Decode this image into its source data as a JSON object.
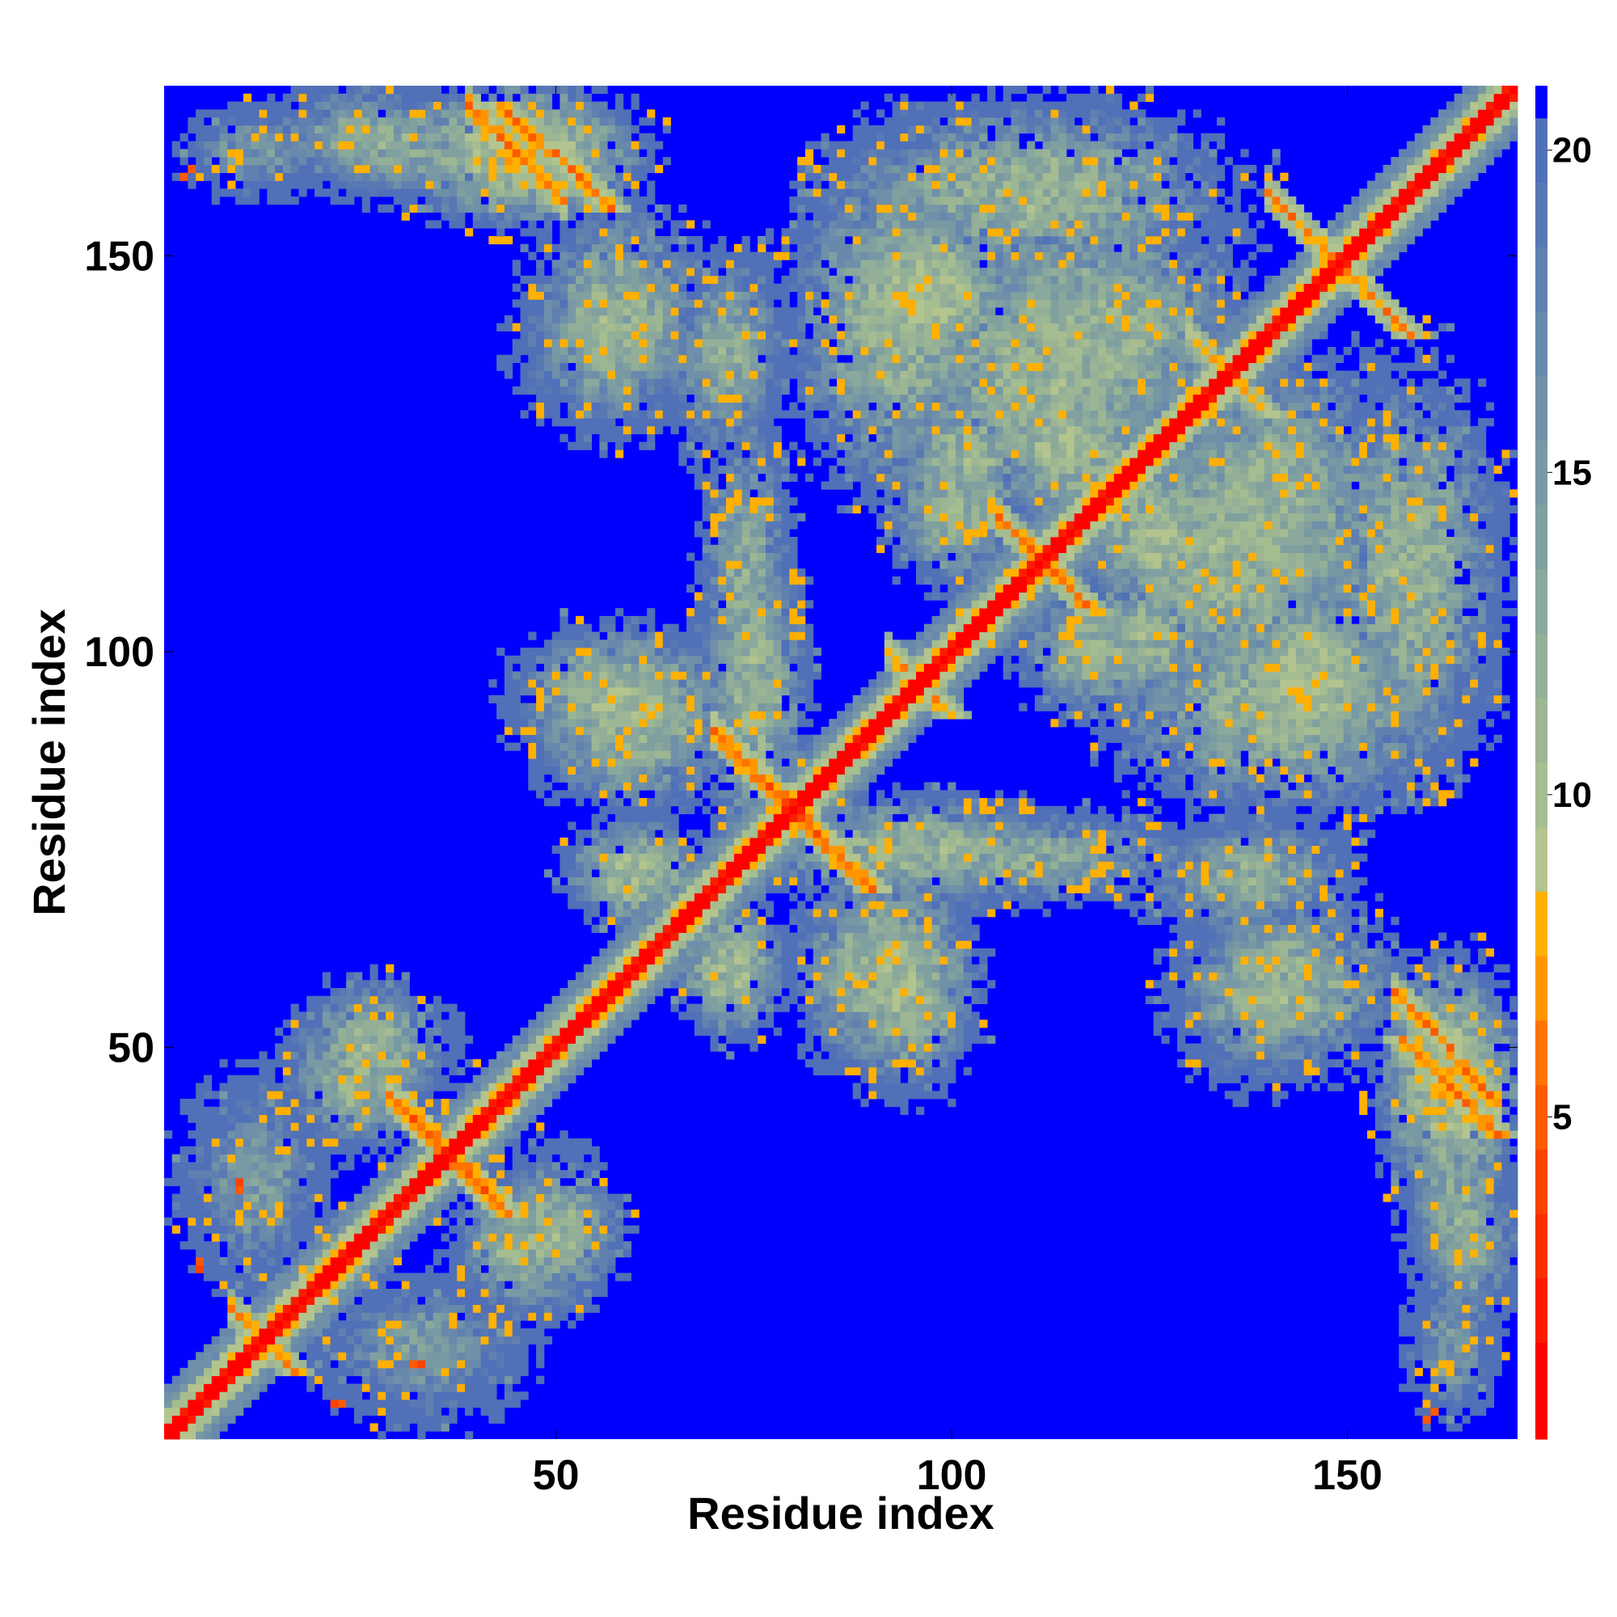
{
  "chart_data": {
    "type": "heatmap",
    "title": "",
    "xlabel": "Residue index",
    "ylabel": "Residue index",
    "n_residues": 171,
    "xlim": [
      1,
      171
    ],
    "ylim": [
      1,
      171
    ],
    "x_ticks": [
      50,
      100,
      150
    ],
    "y_ticks": [
      50,
      100,
      150
    ],
    "x_tick_labels": [
      "50",
      "100",
      "150"
    ],
    "y_tick_labels": [
      "50",
      "100",
      "150"
    ],
    "colorbar": {
      "range": [
        0,
        21
      ],
      "ticks": [
        5,
        10,
        15,
        20
      ],
      "tick_labels": [
        "5",
        "10",
        "15",
        "20"
      ],
      "bins": [
        {
          "max": 1.5,
          "color": "#ff0000"
        },
        {
          "max": 2.5,
          "color": "#fb1c00"
        },
        {
          "max": 3.5,
          "color": "#f83000"
        },
        {
          "max": 4.5,
          "color": "#fa4200"
        },
        {
          "max": 5.5,
          "color": "#fd5a00"
        },
        {
          "max": 6.5,
          "color": "#ff7400"
        },
        {
          "max": 7.5,
          "color": "#ff9600"
        },
        {
          "max": 8.5,
          "color": "#ffb000"
        },
        {
          "max": 9.5,
          "color": "#b3c48e"
        },
        {
          "max": 10.5,
          "color": "#a5bd90"
        },
        {
          "max": 11.5,
          "color": "#9cb694"
        },
        {
          "max": 12.5,
          "color": "#93af98"
        },
        {
          "max": 13.5,
          "color": "#8aa89c"
        },
        {
          "max": 14.5,
          "color": "#80a0a0"
        },
        {
          "max": 15.5,
          "color": "#7898a4"
        },
        {
          "max": 16.5,
          "color": "#6f90a8"
        },
        {
          "max": 17.5,
          "color": "#6888ac"
        },
        {
          "max": 18.5,
          "color": "#6080b0"
        },
        {
          "max": 19.5,
          "color": "#5878b4"
        },
        {
          "max": 20.5,
          "color": "#5070b8"
        },
        {
          "max": 21.0,
          "color": "#0000ff"
        }
      ]
    },
    "background_color": "#0000ff",
    "contact_features": [
      {
        "kind": "diagonal",
        "start": 1,
        "end": 171,
        "width": 1.4,
        "distance": 0.5
      },
      {
        "kind": "diagonal",
        "start": 1,
        "end": 171,
        "width": 3.0,
        "distance": 6
      },
      {
        "kind": "diagonal",
        "start": 1,
        "end": 171,
        "width": 6.0,
        "distance": 11
      },
      {
        "kind": "diagonal",
        "start": 1,
        "end": 171,
        "width": 9.0,
        "distance": 15
      },
      {
        "kind": "antiparallel",
        "from": [
          70,
          90
        ],
        "to": [
          80,
          80
        ],
        "width": 1.5,
        "distance": 4
      },
      {
        "kind": "antiparallel",
        "from": [
          29,
          44
        ],
        "to": [
          37,
          37
        ],
        "width": 1.8,
        "distance": 4
      },
      {
        "kind": "antiparallel",
        "from": [
          9,
          17
        ],
        "to": [
          13,
          13
        ],
        "width": 1.5,
        "distance": 5
      },
      {
        "kind": "antiparallel",
        "from": [
          105,
          118
        ],
        "to": [
          110,
          110
        ],
        "width": 1.5,
        "distance": 5
      },
      {
        "kind": "antiparallel",
        "from": [
          140,
          158
        ],
        "to": [
          150,
          150
        ],
        "width": 1.5,
        "distance": 5
      },
      {
        "kind": "antiparallel",
        "from": [
          130,
          140
        ],
        "to": [
          133,
          133
        ],
        "width": 1.5,
        "distance": 6
      },
      {
        "kind": "antiparallel",
        "from": [
          92,
          100
        ],
        "to": [
          96,
          96
        ],
        "width": 1.5,
        "distance": 6
      },
      {
        "kind": "segment",
        "from": [
          39,
          169
        ],
        "to": [
          51,
          157
        ],
        "width": 1.6,
        "distance": 4.5
      },
      {
        "kind": "segment",
        "from": [
          156,
          57
        ],
        "to": [
          169,
          43
        ],
        "width": 1.6,
        "distance": 4.5
      },
      {
        "kind": "blob",
        "center": [
          45,
          163
        ],
        "radius": [
          14,
          8
        ],
        "distance": 10
      },
      {
        "kind": "blob",
        "center": [
          25,
          165
        ],
        "radius": [
          12,
          6
        ],
        "distance": 14
      },
      {
        "kind": "blob",
        "center": [
          58,
          143
        ],
        "radius": [
          10,
          12
        ],
        "distance": 12
      },
      {
        "kind": "blob",
        "center": [
          71,
          137
        ],
        "radius": [
          6,
          11
        ],
        "distance": 13
      },
      {
        "kind": "blob",
        "center": [
          58,
          94
        ],
        "radius": [
          12,
          8
        ],
        "distance": 11
      },
      {
        "kind": "blob",
        "center": [
          74,
          110
        ],
        "radius": [
          5,
          18
        ],
        "distance": 13
      },
      {
        "kind": "blob",
        "center": [
          93,
          142
        ],
        "radius": [
          12,
          20
        ],
        "distance": 12
      },
      {
        "kind": "blob",
        "center": [
          118,
          140
        ],
        "radius": [
          18,
          15
        ],
        "distance": 12
      },
      {
        "kind": "blob",
        "center": [
          135,
          112
        ],
        "radius": [
          18,
          18
        ],
        "distance": 12
      },
      {
        "kind": "blob",
        "center": [
          145,
          97
        ],
        "radius": [
          10,
          10
        ],
        "distance": 10
      },
      {
        "kind": "blob",
        "center": [
          158,
          110
        ],
        "radius": [
          10,
          22
        ],
        "distance": 12
      },
      {
        "kind": "blob",
        "center": [
          95,
          75
        ],
        "radius": [
          18,
          6
        ],
        "distance": 12
      },
      {
        "kind": "blob",
        "center": [
          90,
          60
        ],
        "radius": [
          9,
          11
        ],
        "distance": 12
      },
      {
        "kind": "blob",
        "center": [
          138,
          73
        ],
        "radius": [
          10,
          5
        ],
        "distance": 13
      },
      {
        "kind": "blob",
        "center": [
          139,
          57
        ],
        "radius": [
          10,
          10
        ],
        "distance": 13
      },
      {
        "kind": "blob",
        "center": [
          164,
          30
        ],
        "radius": [
          6,
          10
        ],
        "distance": 13
      },
      {
        "kind": "blob",
        "center": [
          163,
          12
        ],
        "radius": [
          5,
          8
        ],
        "distance": 15
      },
      {
        "kind": "blob",
        "center": [
          60,
          72
        ],
        "radius": [
          8,
          6
        ],
        "distance": 11
      },
      {
        "kind": "blob",
        "center": [
          46,
          25
        ],
        "radius": [
          8,
          8
        ],
        "distance": 12
      },
      {
        "kind": "blob",
        "center": [
          27,
          50
        ],
        "radius": [
          9,
          7
        ],
        "distance": 12
      },
      {
        "kind": "blob",
        "center": [
          12,
          33
        ],
        "radius": [
          8,
          12
        ],
        "distance": 15
      },
      {
        "kind": "blob",
        "center": [
          34,
          13
        ],
        "radius": [
          9,
          6
        ],
        "distance": 15
      },
      {
        "kind": "blob",
        "center": [
          115,
          126
        ],
        "radius": [
          9,
          9
        ],
        "distance": 11
      },
      {
        "kind": "blob",
        "center": [
          124,
          102
        ],
        "radius": [
          9,
          8
        ],
        "distance": 12
      },
      {
        "kind": "blob",
        "center": [
          100,
          118
        ],
        "radius": [
          7,
          9
        ],
        "distance": 12
      }
    ],
    "isolated_contacts": [
      {
        "x": 3,
        "y": 160,
        "distance": 5
      },
      {
        "x": 5,
        "y": 22,
        "distance": 4
      },
      {
        "x": 10,
        "y": 33,
        "distance": 4
      },
      {
        "x": 32,
        "y": 10,
        "distance": 5
      },
      {
        "x": 23,
        "y": 5,
        "distance": 5
      },
      {
        "x": 161,
        "y": 4,
        "distance": 5
      }
    ]
  }
}
